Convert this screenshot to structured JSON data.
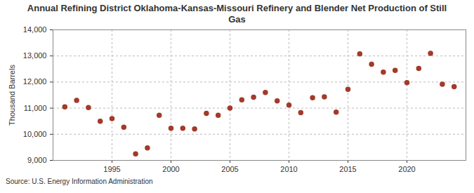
{
  "chart_data": {
    "type": "scatter",
    "title": "Annual Refining District Oklahoma-Kansas-Missouri Refinery and Blender Net Production of Still Gas",
    "y_label": "Thousand Barrels",
    "source": "Source: U.S. Energy Information Administration",
    "x": [
      1991,
      1992,
      1993,
      1994,
      1995,
      1996,
      1997,
      1998,
      1999,
      2000,
      2001,
      2002,
      2003,
      2004,
      2005,
      2006,
      2007,
      2008,
      2009,
      2010,
      2011,
      2012,
      2013,
      2014,
      2015,
      2016,
      2017,
      2018,
      2019,
      2020,
      2021,
      2022,
      2023,
      2024
    ],
    "values": [
      11050,
      11300,
      11020,
      10500,
      10600,
      10270,
      9250,
      9480,
      10730,
      10230,
      10230,
      10200,
      10800,
      10730,
      11000,
      11320,
      11420,
      11600,
      11280,
      11120,
      10830,
      11400,
      11430,
      10850,
      11720,
      13080,
      12680,
      12380,
      12450,
      11980,
      12520,
      13100,
      11920,
      11820
    ],
    "color": "#a33a2a",
    "marker": "circle",
    "xlim": [
      1990,
      2025
    ],
    "xticks": [
      1995,
      2000,
      2005,
      2010,
      2015,
      2020
    ],
    "ylim": [
      9000,
      14000
    ],
    "yticks": [
      {
        "value": 9000,
        "label": "9,000"
      },
      {
        "value": 10000,
        "label": "10,000"
      },
      {
        "value": 11000,
        "label": "11,000"
      },
      {
        "value": 12000,
        "label": "12,000"
      },
      {
        "value": 13000,
        "label": "13,000"
      },
      {
        "value": 14000,
        "label": "14,000"
      }
    ],
    "grid": true
  }
}
